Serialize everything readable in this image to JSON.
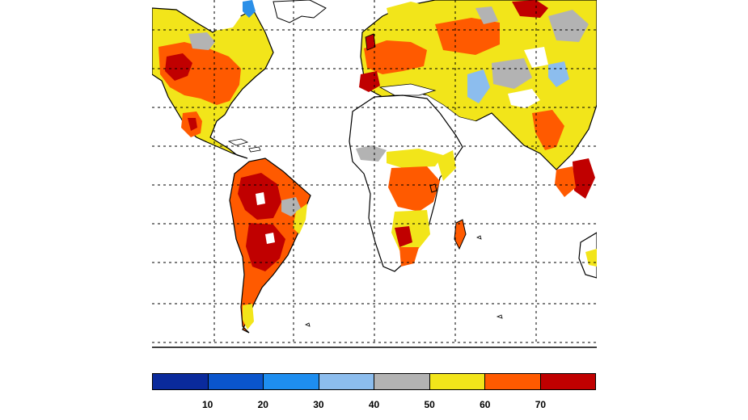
{
  "map": {
    "projection": "cylindrical equidistant (cropped, western hemisphere to Indonesia)",
    "gridlines": "dashed",
    "value_colors": {
      "gt70": "#c00000",
      "60_70": "#ff5a00",
      "50_60": "#f2e51a",
      "40_50": "#b3b3b3",
      "30_40": "#8cbdee",
      "20_30": "#2b8fe8",
      "no_data": "#ffffff"
    }
  },
  "colorbar": {
    "colors": [
      "#0a2a9c",
      "#0a55cc",
      "#1e8ef0",
      "#8cbdee",
      "#b3b3b3",
      "#f2e51a",
      "#ff5a00",
      "#c00000"
    ],
    "ticks": [
      "10",
      "20",
      "30",
      "40",
      "50",
      "60",
      "70"
    ]
  }
}
